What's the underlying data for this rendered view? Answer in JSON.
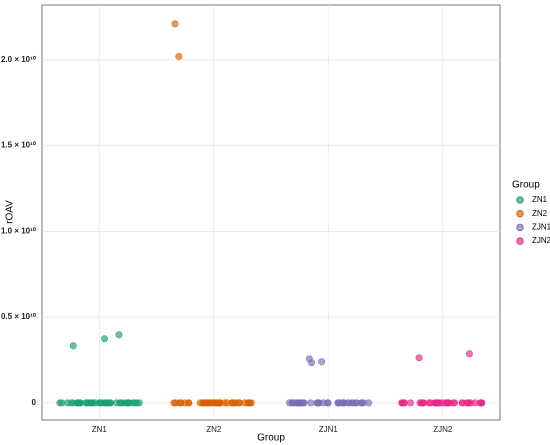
{
  "chart_data": {
    "type": "strip",
    "x_label": "Group",
    "y_label": "rOAV",
    "legend_title": "Group",
    "legend": "right",
    "grid": true,
    "categories": [
      "ZN1",
      "ZN2",
      "ZJN1",
      "ZJN2"
    ],
    "ylim": [
      -1000000000,
      23200000000
    ],
    "yticks": [
      0,
      {
        "value": 5000000000,
        "label": "0.5 × 10¹⁰"
      },
      {
        "value": 10000000000,
        "label": "1.0 × 10¹⁰"
      },
      {
        "value": 15000000000,
        "label": "1.5 × 10¹⁰"
      },
      {
        "value": 20000000000,
        "label": "2.0 × 10¹⁰"
      }
    ],
    "series": [
      {
        "name": "ZN1",
        "color": "#1b9e77",
        "values": [
          3330000000,
          3970000000,
          3740000000,
          0,
          0,
          0,
          0,
          0,
          0,
          0,
          0,
          0,
          0,
          0,
          0,
          0,
          0,
          0,
          0,
          0,
          0,
          0,
          0,
          0,
          0,
          0,
          0,
          0,
          0,
          0,
          0,
          0,
          0,
          0,
          0,
          0,
          0,
          0,
          0,
          0,
          0,
          0
        ]
      },
      {
        "name": "ZN2",
        "color": "#d95f02",
        "values": [
          22100000000,
          20200000000,
          0,
          0,
          0,
          0,
          0,
          0,
          0,
          0,
          0,
          0,
          0,
          0,
          0,
          0,
          0,
          0,
          0,
          0,
          0,
          0,
          0,
          0,
          0,
          0,
          0,
          0,
          0,
          0,
          0,
          0,
          0,
          0,
          0,
          0,
          0,
          0,
          0,
          0,
          0,
          0
        ]
      },
      {
        "name": "ZJN1",
        "color": "#7570b3",
        "values": [
          2570000000,
          2400000000,
          2340000000,
          0,
          0,
          0,
          0,
          0,
          0,
          0,
          0,
          0,
          0,
          0,
          0,
          0,
          0,
          0,
          0,
          0,
          0,
          0,
          0,
          0,
          0,
          0,
          0,
          0,
          0,
          0,
          0,
          0,
          0,
          0,
          0,
          0,
          0,
          0,
          0,
          0,
          0,
          0
        ]
      },
      {
        "name": "ZJN2",
        "color": "#e7298a",
        "values": [
          2630000000,
          2860000000,
          0,
          0,
          0,
          0,
          0,
          0,
          0,
          0,
          0,
          0,
          0,
          0,
          0,
          0,
          0,
          0,
          0,
          0,
          0,
          0,
          0,
          0,
          0,
          0,
          0,
          0,
          0,
          0,
          0,
          0,
          0,
          0,
          0,
          0,
          0,
          0,
          0,
          0,
          0,
          0
        ]
      }
    ]
  }
}
